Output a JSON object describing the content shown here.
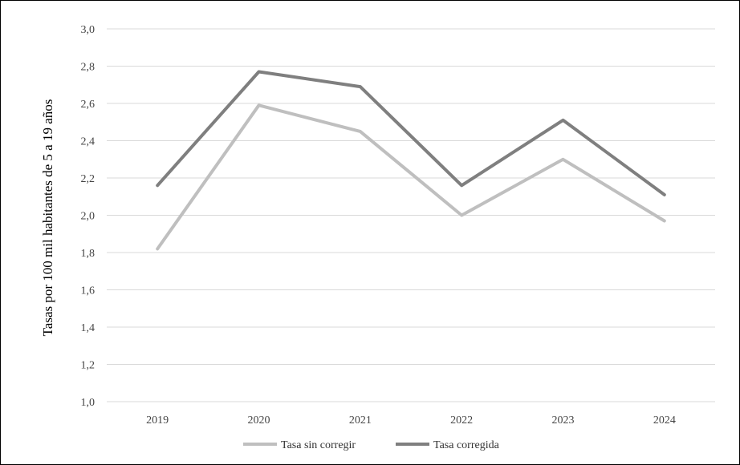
{
  "chart_data": {
    "type": "line",
    "title": "",
    "xlabel": "",
    "ylabel": "Tasas por 100 mil habitantes de 5 a 19 años",
    "categories": [
      "2019",
      "2020",
      "2021",
      "2022",
      "2023",
      "2024"
    ],
    "ylim": [
      1.0,
      3.0
    ],
    "yticks": [
      "1,0",
      "1,2",
      "1,4",
      "1,6",
      "1,8",
      "2,0",
      "2,2",
      "2,4",
      "2,6",
      "2,8",
      "3,0"
    ],
    "grid": true,
    "legend_position": "bottom",
    "series": [
      {
        "name": "Tasa sin corregir",
        "color": "#BFBFBF",
        "values": [
          1.82,
          2.59,
          2.45,
          2.0,
          2.3,
          1.97
        ]
      },
      {
        "name": "Tasa corregida",
        "color": "#7F7F7F",
        "values": [
          2.16,
          2.77,
          2.69,
          2.16,
          2.51,
          2.11
        ]
      }
    ]
  }
}
